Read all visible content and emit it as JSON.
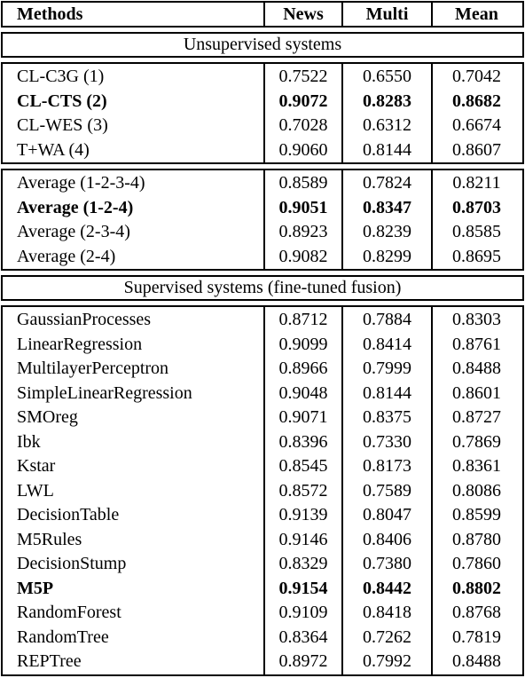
{
  "table": {
    "header": [
      "Methods",
      "News",
      "Multi",
      "Mean"
    ],
    "sections": [
      {
        "title": "Unsupervised systems",
        "groups": [
          [
            {
              "cells": [
                "CL-C3G (1)",
                "0.7522",
                "0.6550",
                "0.7042"
              ]
            },
            {
              "cells": [
                "CL-CTS (2)",
                "0.9072",
                "0.8283",
                "0.8682"
              ],
              "bold": true
            },
            {
              "cells": [
                "CL-WES (3)",
                "0.7028",
                "0.6312",
                "0.6674"
              ]
            },
            {
              "cells": [
                "T+WA (4)",
                "0.9060",
                "0.8144",
                "0.8607"
              ]
            }
          ],
          [
            {
              "cells": [
                "Average (1-2-3-4)",
                "0.8589",
                "0.7824",
                "0.8211"
              ]
            },
            {
              "cells": [
                "Average (1-2-4)",
                "0.9051",
                "0.8347",
                "0.8703"
              ],
              "bold": true
            },
            {
              "cells": [
                "Average (2-3-4)",
                "0.8923",
                "0.8239",
                "0.8585"
              ]
            },
            {
              "cells": [
                "Average (2-4)",
                "0.9082",
                "0.8299",
                "0.8695"
              ]
            }
          ]
        ]
      },
      {
        "title": "Supervised systems (fine-tuned fusion)",
        "groups": [
          [
            {
              "cells": [
                "GaussianProcesses",
                "0.8712",
                "0.7884",
                "0.8303"
              ]
            },
            {
              "cells": [
                "LinearRegression",
                "0.9099",
                "0.8414",
                "0.8761"
              ]
            },
            {
              "cells": [
                "MultilayerPerceptron",
                "0.8966",
                "0.7999",
                "0.8488"
              ]
            },
            {
              "cells": [
                "SimpleLinearRegression",
                "0.9048",
                "0.8144",
                "0.8601"
              ]
            },
            {
              "cells": [
                "SMOreg",
                "0.9071",
                "0.8375",
                "0.8727"
              ]
            },
            {
              "cells": [
                "Ibk",
                "0.8396",
                "0.7330",
                "0.7869"
              ]
            },
            {
              "cells": [
                "Kstar",
                "0.8545",
                "0.8173",
                "0.8361"
              ]
            },
            {
              "cells": [
                "LWL",
                "0.8572",
                "0.7589",
                "0.8086"
              ]
            },
            {
              "cells": [
                "DecisionTable",
                "0.9139",
                "0.8047",
                "0.8599"
              ]
            },
            {
              "cells": [
                "M5Rules",
                "0.9146",
                "0.8406",
                "0.8780"
              ]
            },
            {
              "cells": [
                "DecisionStump",
                "0.8329",
                "0.7380",
                "0.7860"
              ]
            },
            {
              "cells": [
                "M5P",
                "0.9154",
                "0.8442",
                "0.8802"
              ],
              "bold": true
            },
            {
              "cells": [
                "RandomForest",
                "0.9109",
                "0.8418",
                "0.8768"
              ]
            },
            {
              "cells": [
                "RandomTree",
                "0.8364",
                "0.7262",
                "0.7819"
              ]
            },
            {
              "cells": [
                "REPTree",
                "0.8972",
                "0.7992",
                "0.8488"
              ]
            }
          ]
        ]
      }
    ]
  }
}
